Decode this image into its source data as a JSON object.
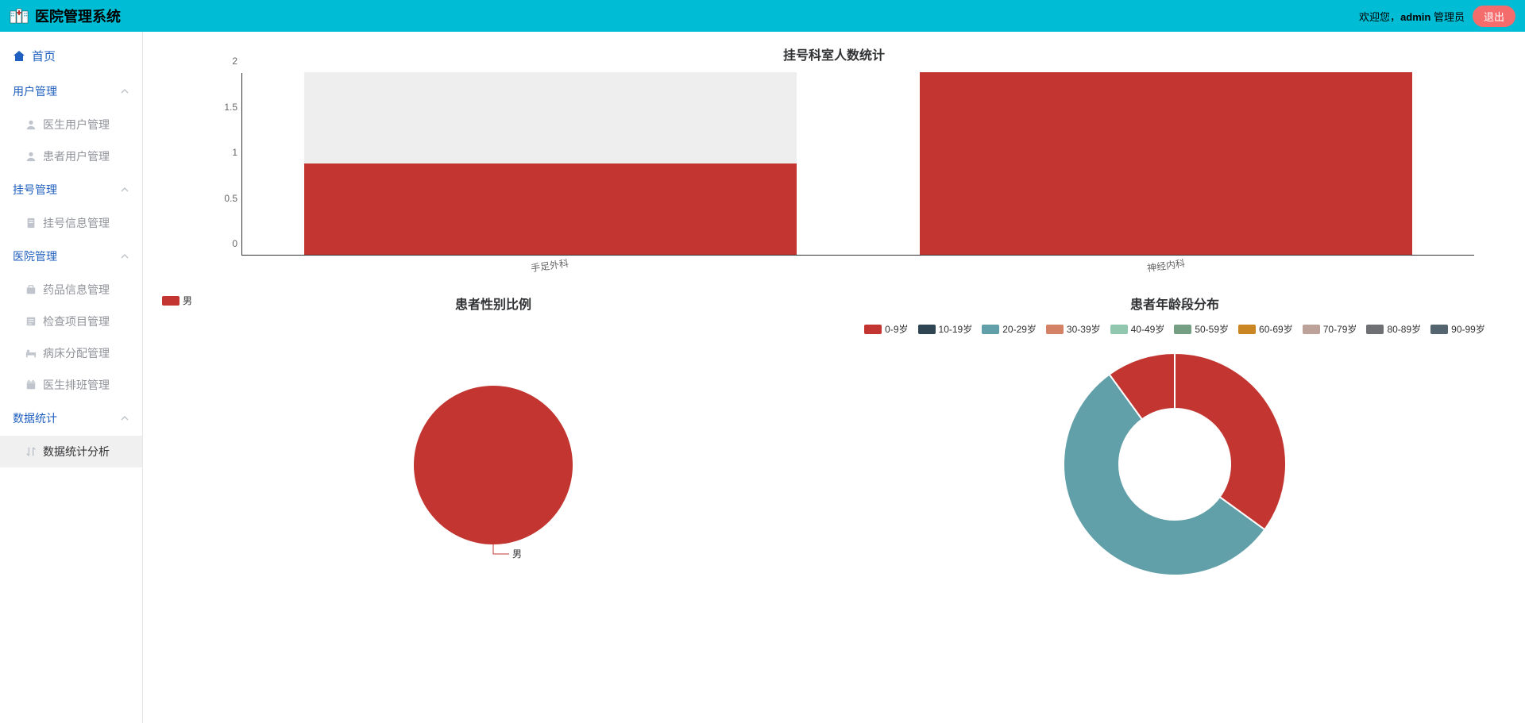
{
  "header": {
    "title": "医院管理系统",
    "welcome_prefix": "欢迎您，",
    "username": "admin",
    "role_suffix": " 管理员",
    "logout": "退出",
    "bg_color": "#00bcd4"
  },
  "sidebar": {
    "home": "首页",
    "groups": [
      {
        "label": "用户管理",
        "items": [
          {
            "label": "医生用户管理",
            "icon": "user"
          },
          {
            "label": "患者用户管理",
            "icon": "user"
          }
        ]
      },
      {
        "label": "挂号管理",
        "items": [
          {
            "label": "挂号信息管理",
            "icon": "doc"
          }
        ]
      },
      {
        "label": "医院管理",
        "items": [
          {
            "label": "药品信息管理",
            "icon": "bag"
          },
          {
            "label": "检查项目管理",
            "icon": "list"
          },
          {
            "label": "病床分配管理",
            "icon": "bed"
          },
          {
            "label": "医生排班管理",
            "icon": "calendar"
          }
        ]
      },
      {
        "label": "数据统计",
        "items": [
          {
            "label": "数据统计分析",
            "icon": "sort",
            "active": true
          }
        ]
      }
    ]
  },
  "bar_chart": {
    "title": "挂号科室人数统计",
    "type": "bar",
    "categories": [
      "手足外科",
      "神经内科"
    ],
    "max_values": [
      2,
      2
    ],
    "values": [
      1,
      2
    ],
    "ylim": [
      0,
      2
    ],
    "ytick_step": 0.5,
    "bar_color": "#c23531",
    "bar_bg_color": "#eeeeee",
    "axis_color": "#333333",
    "label_fontsize": 12
  },
  "pie_chart": {
    "title": "患者性别比例",
    "type": "pie",
    "legend": [
      "男"
    ],
    "series": [
      {
        "name": "男",
        "value": 1,
        "color": "#c23531"
      }
    ],
    "radius": 100,
    "title_fontsize": 16
  },
  "donut_chart": {
    "title": "患者年龄段分布",
    "type": "donut",
    "legend_items": [
      {
        "label": "0-9岁",
        "color": "#c23531"
      },
      {
        "label": "10-19岁",
        "color": "#2f4554"
      },
      {
        "label": "20-29岁",
        "color": "#61a0a8"
      },
      {
        "label": "30-39岁",
        "color": "#d48265"
      },
      {
        "label": "40-49岁",
        "color": "#91c7ae"
      },
      {
        "label": "50-59岁",
        "color": "#749f83"
      },
      {
        "label": "60-69岁",
        "color": "#ca8622"
      },
      {
        "label": "70-79岁",
        "color": "#bda29a"
      },
      {
        "label": "80-89岁",
        "color": "#6e7074"
      },
      {
        "label": "90-99岁",
        "color": "#546570"
      }
    ],
    "series": [
      {
        "name": "0-9岁",
        "value": 35,
        "color": "#c23531"
      },
      {
        "name": "20-29岁",
        "value": 55,
        "color": "#61a0a8"
      },
      {
        "name": "0-9岁",
        "value": 10,
        "color": "#c23531"
      }
    ],
    "inner_radius": 70,
    "outer_radius": 140
  }
}
